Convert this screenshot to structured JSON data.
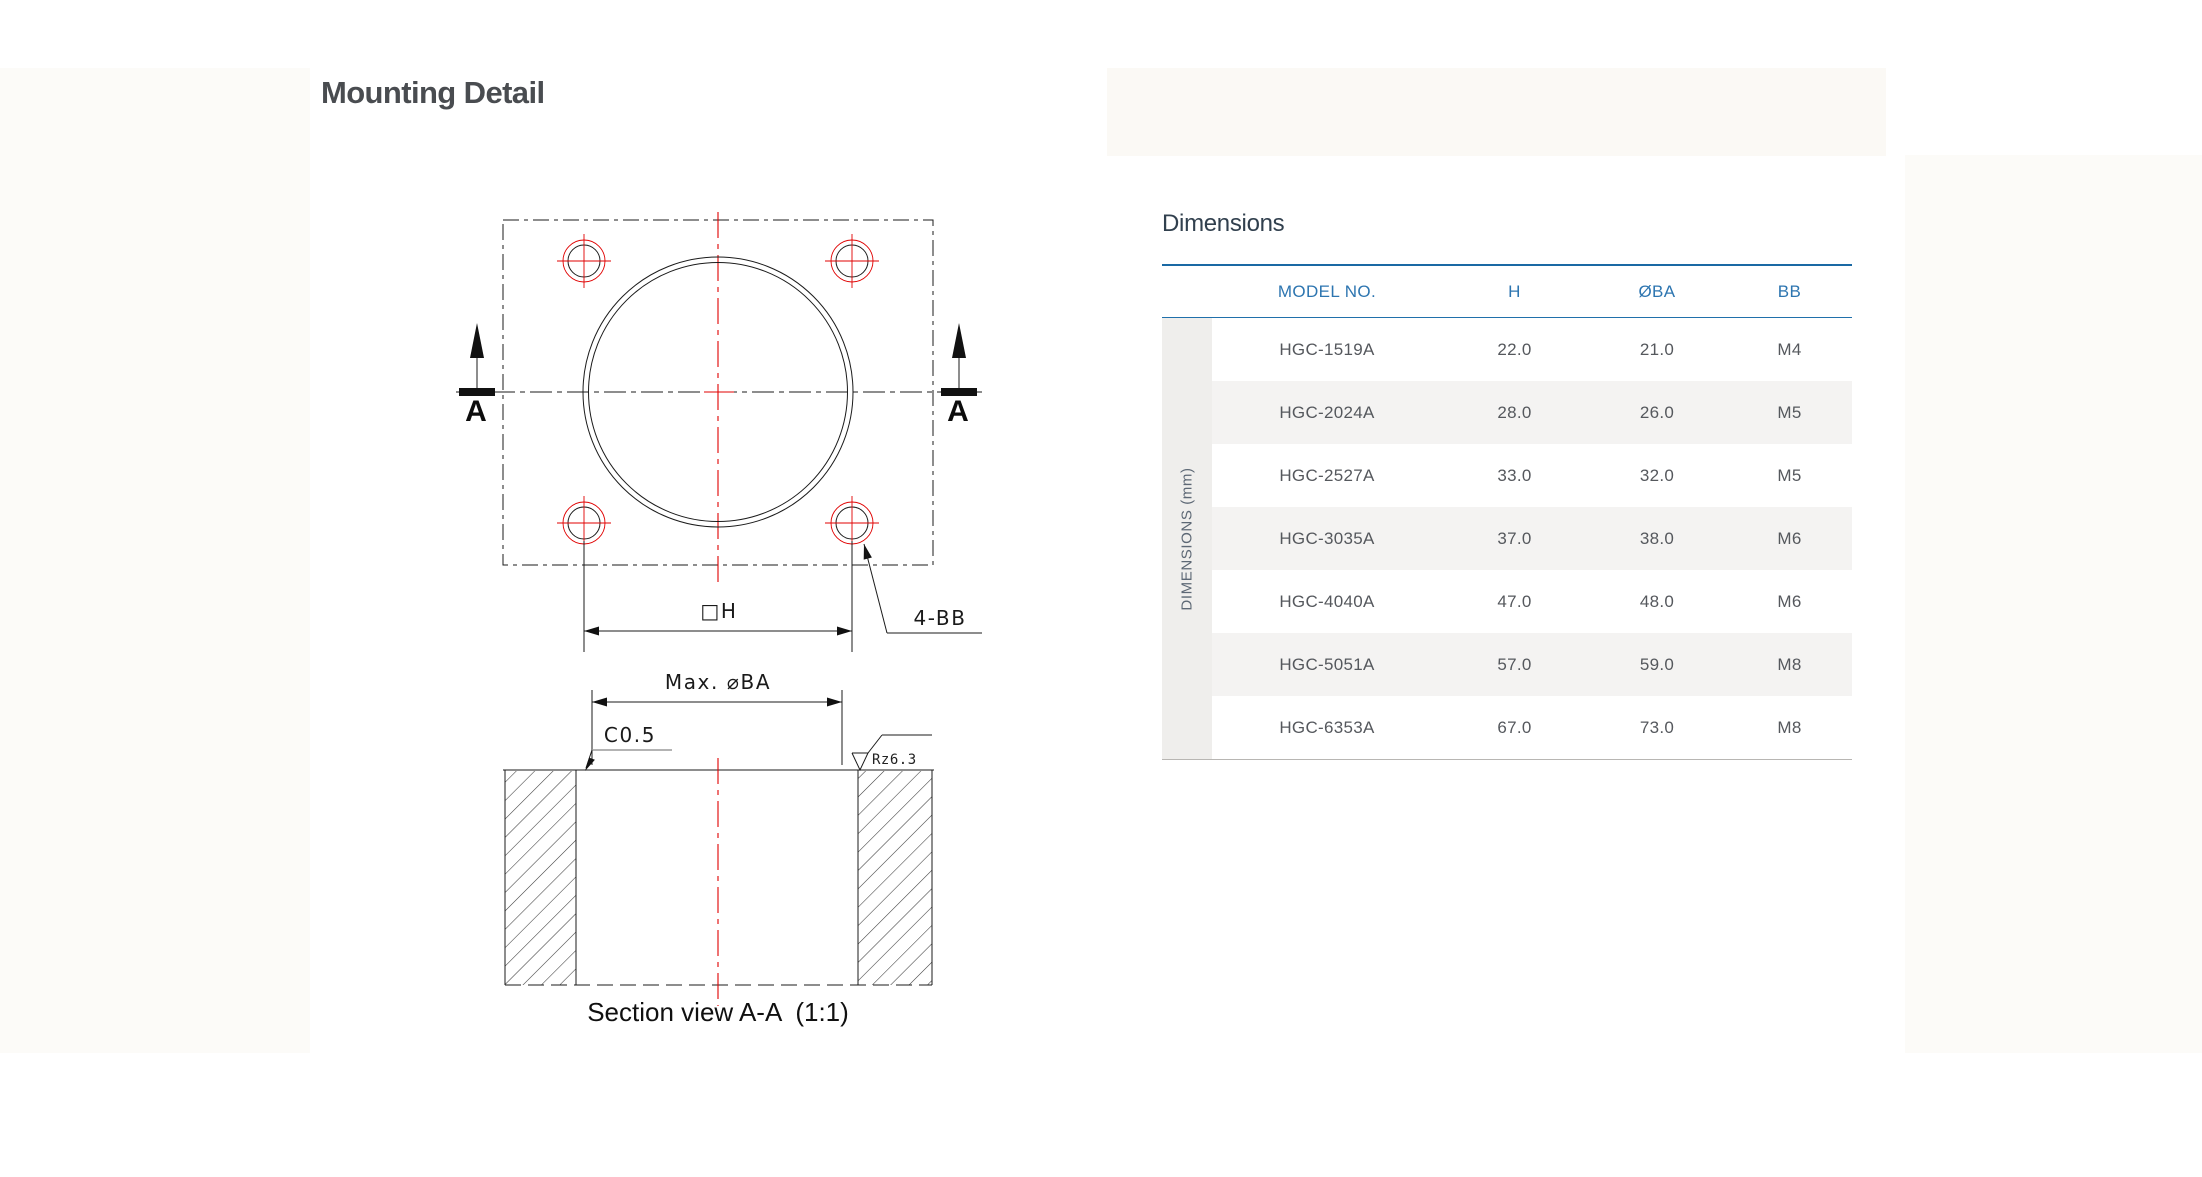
{
  "page": {
    "title": "Mounting Detail"
  },
  "drawing": {
    "top_view": {
      "section_arrow_label_left": "A",
      "section_arrow_label_right": "A",
      "square_dim_label": "□H",
      "bolt_callout": "4-BB"
    },
    "section_view": {
      "diameter_dim_label": "Max. ⌀BA",
      "chamfer_label": "C0.5",
      "surface_roughness_label": "Rz6.3",
      "caption": "Section view A-A  (1:1)"
    }
  },
  "dimensions_table": {
    "heading": "Dimensions",
    "side_label": "DIMENSIONS (mm)",
    "columns": [
      "MODEL NO.",
      "H",
      "ØBA",
      "BB"
    ],
    "rows": [
      {
        "model": "HGC-1519A",
        "h": "22.0",
        "ba": "21.0",
        "bb": "M4"
      },
      {
        "model": "HGC-2024A",
        "h": "28.0",
        "ba": "26.0",
        "bb": "M5"
      },
      {
        "model": "HGC-2527A",
        "h": "33.0",
        "ba": "32.0",
        "bb": "M5"
      },
      {
        "model": "HGC-3035A",
        "h": "37.0",
        "ba": "38.0",
        "bb": "M6"
      },
      {
        "model": "HGC-4040A",
        "h": "47.0",
        "ba": "48.0",
        "bb": "M6"
      },
      {
        "model": "HGC-5051A",
        "h": "57.0",
        "ba": "59.0",
        "bb": "M8"
      },
      {
        "model": "HGC-6353A",
        "h": "67.0",
        "ba": "73.0",
        "bb": "M8"
      }
    ]
  },
  "colors": {
    "accent_blue": "#2d75b0",
    "table_line_blue": "#1a69a4",
    "drawing_red": "#e00000",
    "stripe_gray": "#f4f3f2"
  }
}
